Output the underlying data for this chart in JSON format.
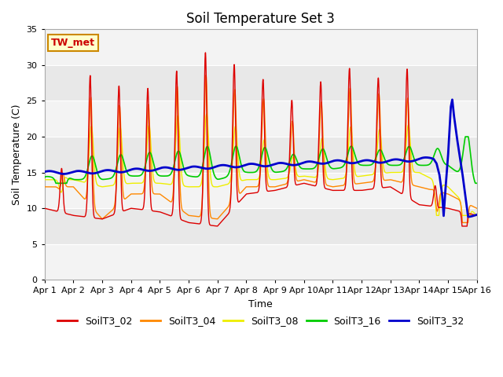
{
  "title": "Soil Temperature Set 3",
  "xlabel": "Time",
  "ylabel": "Soil Temperature (C)",
  "ylim": [
    0,
    35
  ],
  "yticks": [
    0,
    5,
    10,
    15,
    20,
    25,
    30,
    35
  ],
  "x_tick_labels": [
    "Apr 1",
    "Apr 2",
    "Apr 3",
    "Apr 4",
    "Apr 5",
    "Apr 6",
    "Apr 7",
    "Apr 8",
    "Apr 9",
    "Apr 10",
    "Apr 11",
    "Apr 12",
    "Apr 13",
    "Apr 14",
    "Apr 15",
    "Apr 16"
  ],
  "colors": {
    "SoilT3_02": "#dd0000",
    "SoilT3_04": "#ff8800",
    "SoilT3_08": "#eeee00",
    "SoilT3_16": "#00cc00",
    "SoilT3_32": "#0000cc"
  },
  "bg_color": "#e8e8e8",
  "annotation_text": "TW_met",
  "annotation_bg": "#ffffcc",
  "annotation_border": "#cc8800"
}
